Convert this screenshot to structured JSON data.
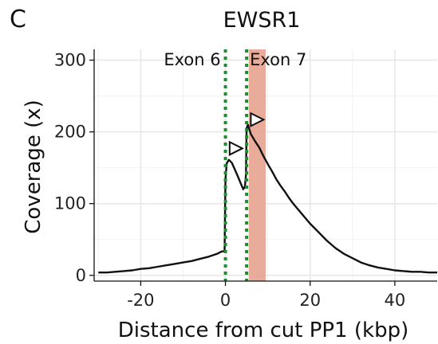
{
  "panel_label": "C",
  "chart_data": {
    "type": "line",
    "title": "EWSR1",
    "xlabel": "Distance from cut PP1 (kbp)",
    "ylabel": "Coverage (x)",
    "xlim": [
      -31,
      50
    ],
    "ylim": [
      -8,
      315
    ],
    "xticks": [
      -20,
      0,
      20,
      40
    ],
    "yticks": [
      0,
      100,
      200,
      300
    ],
    "grid": true,
    "colors": {
      "line": "#111111",
      "exon_lines": "#1a8f2c",
      "highlight": "#e8a38f",
      "grid_major": "#e6e6e6",
      "grid_minor": "#f2f2f2"
    },
    "highlight_region": [
      5.5,
      9.5
    ],
    "exon_lines": [
      {
        "x": 0,
        "label": "Exon 6"
      },
      {
        "x": 5,
        "label": "Exon 7"
      }
    ],
    "markers": [
      {
        "shape": "right-triangle",
        "x": 2.5,
        "y": 177
      },
      {
        "shape": "right-triangle",
        "x": 7.5,
        "y": 217
      }
    ],
    "series": [
      {
        "x": [
          -30,
          -28,
          -26,
          -24,
          -22,
          -20,
          -18,
          -16,
          -14,
          -12,
          -10,
          -8,
          -6,
          -4,
          -2,
          -1,
          -0.2,
          0,
          0.3,
          0.8,
          1.5,
          2.2,
          3,
          3.7,
          4.2,
          4.6,
          4.85,
          5,
          5.3,
          6,
          7,
          8,
          9,
          10,
          11,
          12,
          13,
          14,
          15,
          16,
          17,
          18,
          19,
          20,
          22,
          24,
          26,
          28,
          30,
          32,
          34,
          36,
          38,
          40,
          42,
          44,
          46,
          48,
          50
        ],
        "y": [
          4,
          4,
          5,
          6,
          7,
          9,
          10,
          12,
          14,
          16,
          18,
          20,
          23,
          26,
          30,
          33,
          34,
          134,
          156,
          161,
          157,
          148,
          137,
          127,
          120,
          124,
          140,
          205,
          210,
          197,
          187,
          178,
          166,
          155,
          145,
          134,
          125,
          117,
          108,
          100,
          93,
          86,
          79,
          72,
          60,
          48,
          38,
          30,
          24,
          18,
          14,
          11,
          9,
          7,
          6,
          5,
          5,
          4,
          4
        ]
      }
    ]
  }
}
